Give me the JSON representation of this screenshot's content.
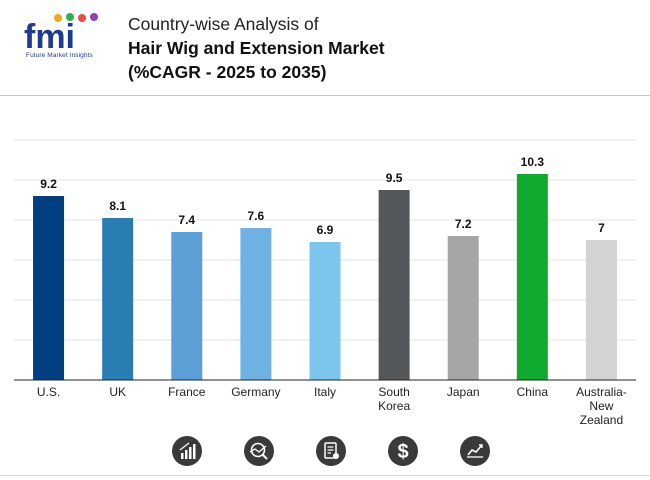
{
  "header": {
    "logo_text": "fmi",
    "logo_subtext": "Future Market Insights",
    "title_line1": "Country-wise Analysis of",
    "title_line2": "Hair Wig and Extension Market",
    "title_line3": "(%CAGR - 2025 to 2035)"
  },
  "chart_data": {
    "type": "bar",
    "title": "Country-wise Analysis of Hair Wig and Extension Market (%CAGR - 2025 to 2035)",
    "xlabel": "",
    "ylabel": "",
    "ylim": [
      0,
      12
    ],
    "grid": true,
    "categories": [
      "U.S.",
      "UK",
      "France",
      "Germany",
      "Italy",
      "South Korea",
      "Japan",
      "China",
      "Australia-New Zealand"
    ],
    "category_lines": [
      [
        "U.S."
      ],
      [
        "UK"
      ],
      [
        "France"
      ],
      [
        "Germany"
      ],
      [
        "Italy"
      ],
      [
        "South",
        "Korea"
      ],
      [
        "Japan"
      ],
      [
        "China"
      ],
      [
        "Australia-",
        "New",
        "Zealand"
      ]
    ],
    "values": [
      9.2,
      8.1,
      7.4,
      7.6,
      6.9,
      9.5,
      7.2,
      10.3,
      7
    ],
    "value_labels": [
      "9.2",
      "8.1",
      "7.4",
      "7.6",
      "6.9",
      "9.5",
      "7.2",
      "10.3",
      "7"
    ],
    "colors": [
      "#003f7f",
      "#2a7db3",
      "#5aa0d6",
      "#6db2e3",
      "#7cc6ee",
      "#55585b",
      "#a6a6a6",
      "#10aa2e",
      "#d2d3d4"
    ]
  },
  "footer": {
    "icons": [
      "bar-chart-icon",
      "analytics-icon",
      "report-icon",
      "dollar-icon",
      "trend-icon"
    ]
  }
}
